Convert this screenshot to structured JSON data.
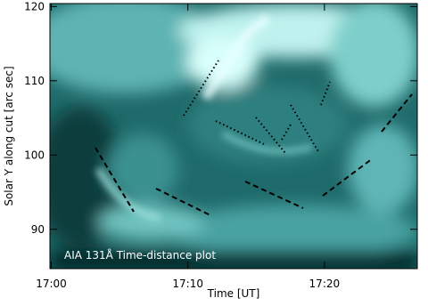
{
  "chart_data": {
    "type": "image",
    "title": "AIA 131Å Time-distance plot",
    "xlabel": "Time [UT]",
    "ylabel": "Solar Y along cut [arc sec]",
    "xlim": [
      -0.1,
      26.8
    ],
    "xticks": [
      {
        "value": 0,
        "label": "17:00"
      },
      {
        "value": 10,
        "label": "17:10"
      },
      {
        "value": 20,
        "label": "17:20"
      }
    ],
    "ylim": [
      84.7,
      120.4
    ],
    "yticks": [
      90,
      100,
      110,
      120
    ]
  }
}
